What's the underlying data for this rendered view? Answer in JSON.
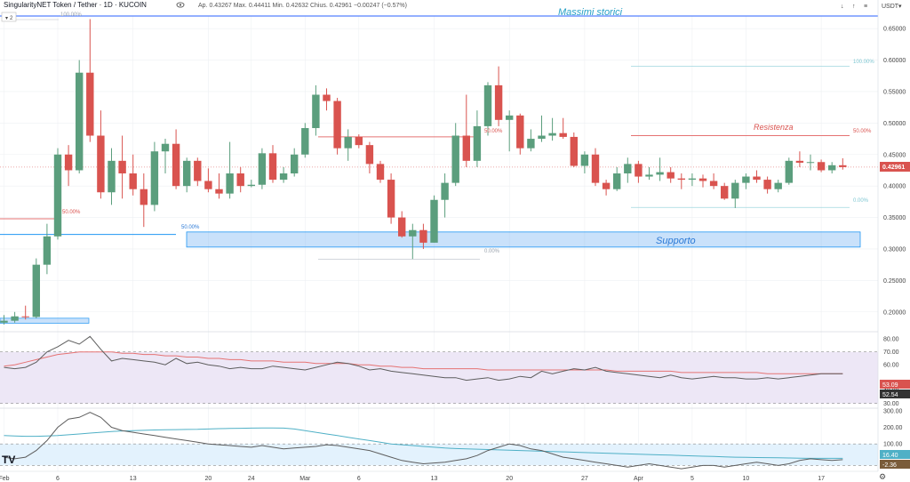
{
  "header": {
    "symbol": "SingularityNET Token / Tether · 1D · KUCOIN",
    "ohlc": "Ap. 0.43267  Max. 0.44411  Min. 0.42632  Chius. 0.42961  −0.00247 (−0.57%)",
    "indicator_count": "2",
    "currency": "USDT"
  },
  "colors": {
    "up": "#5b9e7d",
    "down": "#d9534f",
    "grid": "#eef0f3",
    "ath": "#2962ff",
    "support": "#2196f3",
    "resistance": "#e57373",
    "osc1_fill": "#ede7f6",
    "osc2_fill": "#e3f2fd",
    "osc_line": "#5d5d5d",
    "osc1_signal": "#e57373",
    "osc2_signal": "#4fb0c6"
  },
  "annotations": {
    "ath_label": "Massimi storici",
    "resistance_label": "Resistenza",
    "support_label": "Supporto",
    "fib_ath": "100.00%",
    "fib_50_left": "50.00%",
    "fib_50_left_blue": "50.00%",
    "fib_50_mid": "50.00%",
    "fib_0_mid": "0.00%",
    "fib_100_right": "100.00%",
    "fib_50_right": "50.00%",
    "fib_0_right": "0.00%",
    "last_price": "0.42961",
    "osc1_val_a": "53.09",
    "osc1_val_b": "52.54",
    "osc2_val_a": "16.40",
    "osc2_val_b": "-2.36"
  },
  "chart_data": {
    "type": "candlestick",
    "ylim": [
      0.17,
      0.67
    ],
    "price_ticks": [
      "0.65000",
      "0.60000",
      "0.55000",
      "0.50000",
      "0.45000",
      "0.40000",
      "0.35000",
      "0.30000",
      "0.25000",
      "0.20000"
    ],
    "price_tick_values": [
      0.65,
      0.6,
      0.55,
      0.5,
      0.45,
      0.4,
      0.35,
      0.3,
      0.25,
      0.2
    ],
    "x_labels": [
      "Feb",
      "6",
      "13",
      "20",
      "24",
      "Mar",
      "6",
      "13",
      "20",
      "27",
      "Apr",
      "5",
      "10",
      "17"
    ],
    "x_label_days": [
      0,
      5,
      12,
      19,
      23,
      28,
      33,
      40,
      47,
      54,
      59,
      64,
      69,
      76
    ],
    "levels": {
      "ath": 0.67,
      "resistance": 0.48,
      "support_top": 0.327,
      "support_bottom": 0.303,
      "fib_100_right": 0.59,
      "fib_0_right": 0.366,
      "mid_50": 0.478,
      "mid_0": 0.284,
      "left_50": 0.348,
      "left_50_blue": 0.323
    },
    "candles": [
      {
        "o": 0.183,
        "h": 0.195,
        "l": 0.18,
        "c": 0.186
      },
      {
        "o": 0.186,
        "h": 0.2,
        "l": 0.183,
        "c": 0.193
      },
      {
        "o": 0.193,
        "h": 0.21,
        "l": 0.188,
        "c": 0.192
      },
      {
        "o": 0.192,
        "h": 0.285,
        "l": 0.19,
        "c": 0.275
      },
      {
        "o": 0.275,
        "h": 0.34,
        "l": 0.26,
        "c": 0.32
      },
      {
        "o": 0.32,
        "h": 0.46,
        "l": 0.315,
        "c": 0.45
      },
      {
        "o": 0.45,
        "h": 0.465,
        "l": 0.4,
        "c": 0.425
      },
      {
        "o": 0.425,
        "h": 0.6,
        "l": 0.42,
        "c": 0.58
      },
      {
        "o": 0.58,
        "h": 0.665,
        "l": 0.47,
        "c": 0.48
      },
      {
        "o": 0.48,
        "h": 0.52,
        "l": 0.38,
        "c": 0.39
      },
      {
        "o": 0.39,
        "h": 0.46,
        "l": 0.37,
        "c": 0.44
      },
      {
        "o": 0.44,
        "h": 0.48,
        "l": 0.38,
        "c": 0.42
      },
      {
        "o": 0.42,
        "h": 0.45,
        "l": 0.385,
        "c": 0.395
      },
      {
        "o": 0.395,
        "h": 0.42,
        "l": 0.335,
        "c": 0.37
      },
      {
        "o": 0.37,
        "h": 0.47,
        "l": 0.36,
        "c": 0.455
      },
      {
        "o": 0.455,
        "h": 0.475,
        "l": 0.42,
        "c": 0.467
      },
      {
        "o": 0.467,
        "h": 0.49,
        "l": 0.395,
        "c": 0.4
      },
      {
        "o": 0.4,
        "h": 0.445,
        "l": 0.39,
        "c": 0.44
      },
      {
        "o": 0.44,
        "h": 0.445,
        "l": 0.4,
        "c": 0.408
      },
      {
        "o": 0.408,
        "h": 0.428,
        "l": 0.39,
        "c": 0.395
      },
      {
        "o": 0.395,
        "h": 0.42,
        "l": 0.38,
        "c": 0.388
      },
      {
        "o": 0.388,
        "h": 0.47,
        "l": 0.38,
        "c": 0.42
      },
      {
        "o": 0.42,
        "h": 0.43,
        "l": 0.39,
        "c": 0.4
      },
      {
        "o": 0.4,
        "h": 0.41,
        "l": 0.398,
        "c": 0.402
      },
      {
        "o": 0.402,
        "h": 0.46,
        "l": 0.395,
        "c": 0.452
      },
      {
        "o": 0.452,
        "h": 0.465,
        "l": 0.405,
        "c": 0.41
      },
      {
        "o": 0.41,
        "h": 0.43,
        "l": 0.405,
        "c": 0.42
      },
      {
        "o": 0.42,
        "h": 0.46,
        "l": 0.415,
        "c": 0.45
      },
      {
        "o": 0.45,
        "h": 0.5,
        "l": 0.445,
        "c": 0.492
      },
      {
        "o": 0.492,
        "h": 0.56,
        "l": 0.48,
        "c": 0.545
      },
      {
        "o": 0.545,
        "h": 0.555,
        "l": 0.52,
        "c": 0.535
      },
      {
        "o": 0.535,
        "h": 0.54,
        "l": 0.45,
        "c": 0.46
      },
      {
        "o": 0.46,
        "h": 0.49,
        "l": 0.44,
        "c": 0.478
      },
      {
        "o": 0.478,
        "h": 0.482,
        "l": 0.46,
        "c": 0.465
      },
      {
        "o": 0.465,
        "h": 0.47,
        "l": 0.42,
        "c": 0.435
      },
      {
        "o": 0.435,
        "h": 0.44,
        "l": 0.405,
        "c": 0.41
      },
      {
        "o": 0.41,
        "h": 0.42,
        "l": 0.34,
        "c": 0.35
      },
      {
        "o": 0.35,
        "h": 0.36,
        "l": 0.318,
        "c": 0.32
      },
      {
        "o": 0.32,
        "h": 0.34,
        "l": 0.284,
        "c": 0.33
      },
      {
        "o": 0.33,
        "h": 0.34,
        "l": 0.3,
        "c": 0.31
      },
      {
        "o": 0.31,
        "h": 0.385,
        "l": 0.31,
        "c": 0.378
      },
      {
        "o": 0.378,
        "h": 0.42,
        "l": 0.35,
        "c": 0.405
      },
      {
        "o": 0.405,
        "h": 0.5,
        "l": 0.4,
        "c": 0.48
      },
      {
        "o": 0.48,
        "h": 0.545,
        "l": 0.43,
        "c": 0.44
      },
      {
        "o": 0.44,
        "h": 0.52,
        "l": 0.43,
        "c": 0.495
      },
      {
        "o": 0.495,
        "h": 0.565,
        "l": 0.48,
        "c": 0.56
      },
      {
        "o": 0.56,
        "h": 0.59,
        "l": 0.495,
        "c": 0.505
      },
      {
        "o": 0.505,
        "h": 0.52,
        "l": 0.455,
        "c": 0.512
      },
      {
        "o": 0.512,
        "h": 0.515,
        "l": 0.45,
        "c": 0.46
      },
      {
        "o": 0.46,
        "h": 0.49,
        "l": 0.455,
        "c": 0.475
      },
      {
        "o": 0.475,
        "h": 0.512,
        "l": 0.47,
        "c": 0.48
      },
      {
        "o": 0.48,
        "h": 0.508,
        "l": 0.472,
        "c": 0.484
      },
      {
        "o": 0.484,
        "h": 0.508,
        "l": 0.475,
        "c": 0.478
      },
      {
        "o": 0.478,
        "h": 0.485,
        "l": 0.43,
        "c": 0.432
      },
      {
        "o": 0.432,
        "h": 0.455,
        "l": 0.42,
        "c": 0.45
      },
      {
        "o": 0.45,
        "h": 0.46,
        "l": 0.4,
        "c": 0.405
      },
      {
        "o": 0.405,
        "h": 0.41,
        "l": 0.385,
        "c": 0.395
      },
      {
        "o": 0.395,
        "h": 0.43,
        "l": 0.392,
        "c": 0.42
      },
      {
        "o": 0.42,
        "h": 0.445,
        "l": 0.405,
        "c": 0.435
      },
      {
        "o": 0.435,
        "h": 0.44,
        "l": 0.405,
        "c": 0.415
      },
      {
        "o": 0.415,
        "h": 0.43,
        "l": 0.41,
        "c": 0.418
      },
      {
        "o": 0.418,
        "h": 0.445,
        "l": 0.408,
        "c": 0.422
      },
      {
        "o": 0.422,
        "h": 0.43,
        "l": 0.405,
        "c": 0.412
      },
      {
        "o": 0.412,
        "h": 0.42,
        "l": 0.395,
        "c": 0.41
      },
      {
        "o": 0.41,
        "h": 0.42,
        "l": 0.4,
        "c": 0.412
      },
      {
        "o": 0.412,
        "h": 0.418,
        "l": 0.398,
        "c": 0.408
      },
      {
        "o": 0.408,
        "h": 0.42,
        "l": 0.395,
        "c": 0.4
      },
      {
        "o": 0.4,
        "h": 0.405,
        "l": 0.378,
        "c": 0.38
      },
      {
        "o": 0.38,
        "h": 0.41,
        "l": 0.365,
        "c": 0.405
      },
      {
        "o": 0.405,
        "h": 0.42,
        "l": 0.395,
        "c": 0.415
      },
      {
        "o": 0.415,
        "h": 0.425,
        "l": 0.405,
        "c": 0.41
      },
      {
        "o": 0.41,
        "h": 0.415,
        "l": 0.388,
        "c": 0.395
      },
      {
        "o": 0.395,
        "h": 0.41,
        "l": 0.39,
        "c": 0.405
      },
      {
        "o": 0.405,
        "h": 0.445,
        "l": 0.402,
        "c": 0.44
      },
      {
        "o": 0.44,
        "h": 0.455,
        "l": 0.43,
        "c": 0.437
      },
      {
        "o": 0.437,
        "h": 0.45,
        "l": 0.425,
        "c": 0.438
      },
      {
        "o": 0.438,
        "h": 0.442,
        "l": 0.422,
        "c": 0.425
      },
      {
        "o": 0.425,
        "h": 0.438,
        "l": 0.42,
        "c": 0.433
      },
      {
        "o": 0.433,
        "h": 0.444,
        "l": 0.426,
        "c": 0.43
      }
    ],
    "osc1": {
      "ticks": [
        "80.00",
        "70.00",
        "60.00",
        "40.00",
        "30.00"
      ],
      "tick_values": [
        80,
        70,
        60,
        40,
        30
      ],
      "band": [
        70,
        30
      ],
      "ylim": [
        27,
        85
      ],
      "line": [
        58,
        57,
        58,
        62,
        70,
        74,
        79,
        76,
        82,
        72,
        63,
        65,
        64,
        63,
        62,
        60,
        65,
        61,
        62,
        60,
        59,
        57,
        58,
        57,
        57,
        59,
        58,
        57,
        56,
        58,
        60,
        62,
        61,
        59,
        56,
        57,
        55,
        54,
        53,
        52,
        51,
        50,
        50,
        48,
        49,
        50,
        48,
        49,
        51,
        50,
        55,
        53,
        55,
        57,
        56,
        58,
        55,
        54,
        53,
        52,
        51,
        50,
        52,
        50,
        49,
        50,
        51,
        50,
        50,
        49,
        49,
        50,
        49,
        50,
        51,
        52,
        53,
        53,
        53
      ],
      "signal": [
        59,
        60,
        62,
        64,
        66,
        68,
        69,
        70,
        70,
        70,
        70,
        69,
        69,
        68,
        68,
        67,
        67,
        66,
        66,
        65,
        65,
        64,
        64,
        63,
        63,
        63,
        62,
        62,
        62,
        61,
        61,
        61,
        61,
        60,
        60,
        59,
        59,
        58,
        58,
        57,
        57,
        57,
        57,
        57,
        57,
        56,
        56,
        56,
        56,
        56,
        56,
        56,
        56,
        56,
        56,
        56,
        56,
        55,
        55,
        55,
        55,
        55,
        55,
        54,
        54,
        54,
        54,
        54,
        54,
        54,
        54,
        53,
        53,
        53,
        53,
        53,
        53,
        53,
        53
      ]
    },
    "osc2": {
      "ticks": [
        "300.00",
        "200.00",
        "100.00"
      ],
      "tick_values": [
        300,
        200,
        100
      ],
      "band": [
        100,
        -30
      ],
      "ylim": [
        -60,
        310
      ],
      "line": [
        20,
        10,
        20,
        60,
        120,
        200,
        250,
        260,
        290,
        260,
        200,
        180,
        170,
        160,
        150,
        140,
        130,
        120,
        110,
        100,
        95,
        90,
        85,
        80,
        90,
        80,
        70,
        75,
        80,
        85,
        95,
        90,
        80,
        70,
        60,
        40,
        20,
        0,
        -10,
        -20,
        -15,
        -10,
        0,
        10,
        30,
        60,
        80,
        100,
        90,
        70,
        60,
        40,
        20,
        10,
        0,
        -10,
        -20,
        -30,
        -40,
        -30,
        -20,
        -30,
        -40,
        -50,
        -40,
        -30,
        -30,
        -40,
        -30,
        -20,
        -10,
        -20,
        -30,
        -20,
        0,
        10,
        5,
        0,
        5
      ],
      "signal": [
        150,
        148,
        146,
        146,
        148,
        150,
        155,
        160,
        165,
        170,
        175,
        178,
        180,
        182,
        184,
        185,
        186,
        187,
        188,
        190,
        192,
        193,
        194,
        195,
        196,
        196,
        195,
        190,
        180,
        170,
        160,
        150,
        140,
        130,
        120,
        110,
        100,
        95,
        90,
        85,
        80,
        75,
        72,
        70,
        68,
        66,
        64,
        62,
        60,
        58,
        56,
        54,
        52,
        50,
        48,
        46,
        44,
        42,
        40,
        38,
        36,
        34,
        32,
        30,
        28,
        26,
        24,
        22,
        20,
        19,
        18,
        17,
        16,
        15,
        14,
        13,
        13,
        13,
        13
      ]
    }
  }
}
